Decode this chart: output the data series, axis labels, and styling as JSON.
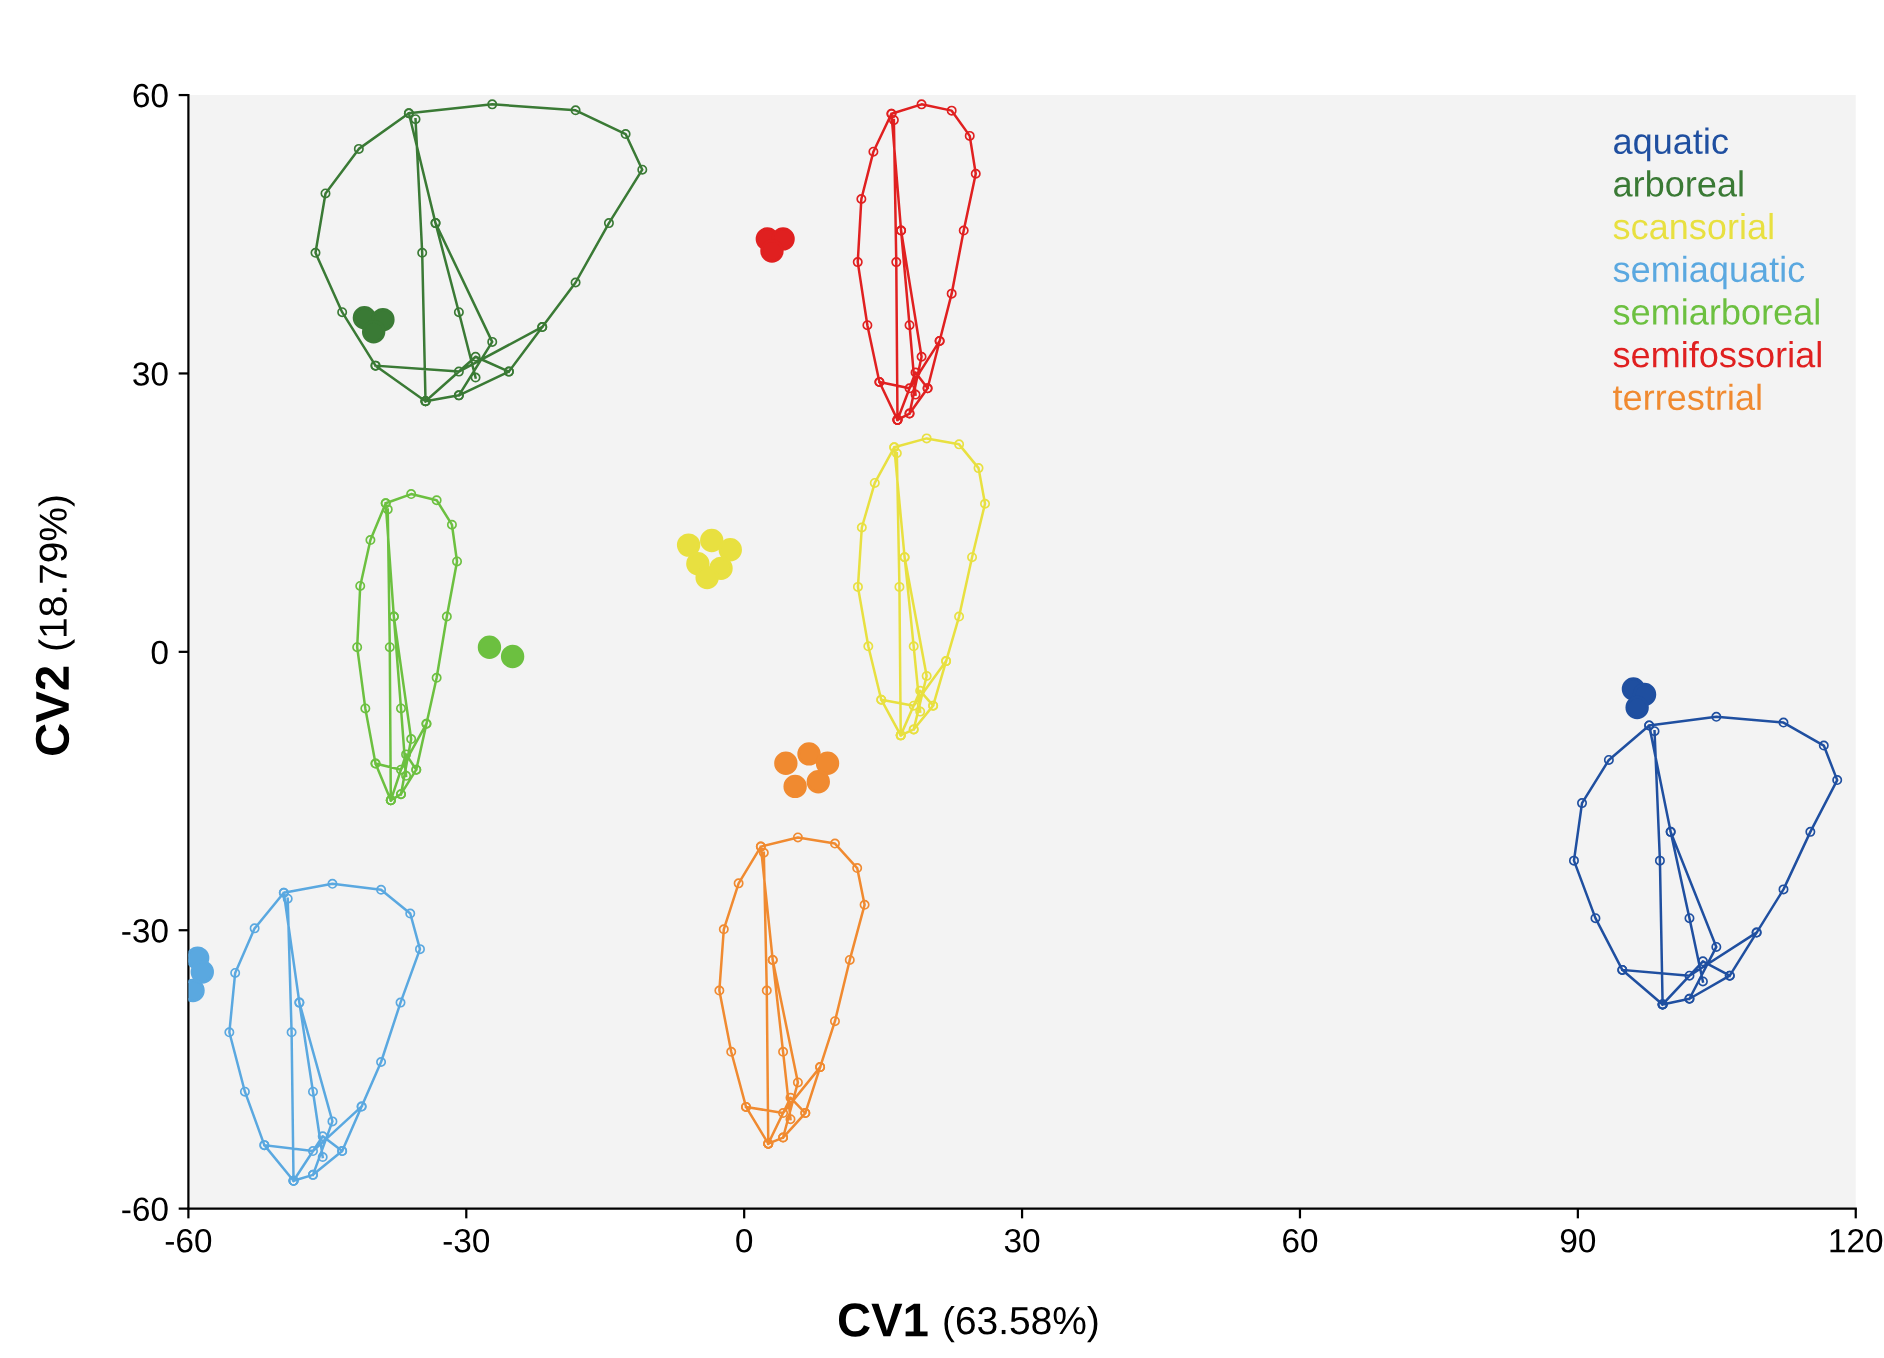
{
  "chart_data": {
    "type": "scatter",
    "xlabel": "CV1 (63.58%)",
    "ylabel": "CV2 (18.79%)",
    "xlim": [
      -60,
      120
    ],
    "xticks": [
      -60,
      -30,
      0,
      30,
      60,
      90,
      120
    ],
    "ylim": [
      -60,
      60
    ],
    "yticks": [
      -60,
      -30,
      0,
      30,
      60
    ],
    "grid": false,
    "legend": "top right",
    "marker": "circle",
    "series": [
      {
        "name": "aquatic",
        "color": "#1f4fa0",
        "x": [
          96,
          97.2,
          96.4
        ],
        "values": [
          -4,
          -4.6,
          -6
        ]
      },
      {
        "name": "arboreal",
        "color": "#3a7a35",
        "x": [
          -41,
          -39,
          -40
        ],
        "values": [
          36,
          35.8,
          34.5
        ]
      },
      {
        "name": "scansorial",
        "color": "#e8e040",
        "x": [
          -6,
          -3.5,
          -1.5,
          -5,
          -2.5,
          -4
        ],
        "values": [
          11.5,
          12,
          11,
          9.5,
          9,
          8
        ]
      },
      {
        "name": "semiaquatic",
        "color": "#5aa8e0",
        "x": [
          -59,
          -59.5,
          -58.5
        ],
        "values": [
          -33,
          -36.5,
          -34.5
        ]
      },
      {
        "name": "semiarboreal",
        "color": "#6cc040",
        "x": [
          -27.5,
          -25
        ],
        "values": [
          0.5,
          -0.5
        ]
      },
      {
        "name": "semifossorial",
        "color": "#e02020",
        "x": [
          2.5,
          4.2,
          3
        ],
        "values": [
          44.5,
          44.5,
          43.2
        ]
      },
      {
        "name": "terrestrial",
        "color": "#f08a30",
        "x": [
          4.5,
          7,
          9,
          5.5,
          8
        ],
        "values": [
          -12,
          -11,
          -12,
          -14.5,
          -14
        ]
      }
    ]
  }
}
